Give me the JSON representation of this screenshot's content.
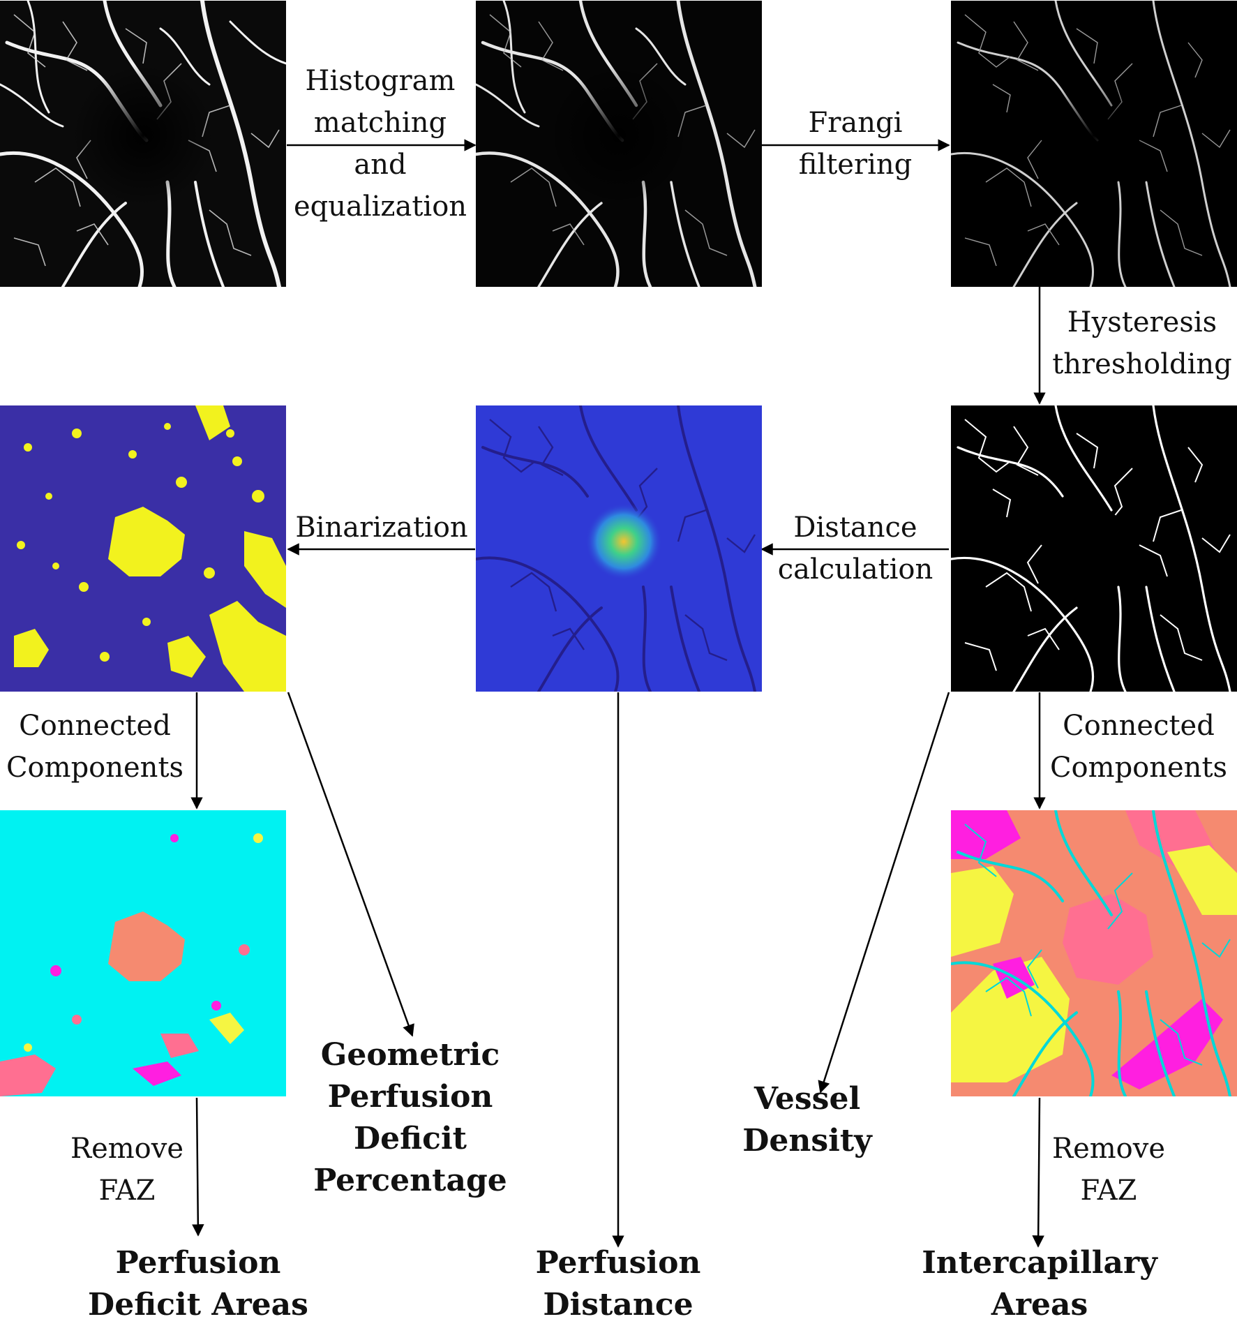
{
  "panels": {
    "oct_original": "OCTA image",
    "oct_equalized": "Equalized OCTA image",
    "frangi": "Frangi filtered image",
    "binary_vessels": "Binary vessel map",
    "distance_map": "Distance map",
    "perfusion_binary": "Binarized distance map",
    "perfusion_components": "Perfusion deficit components",
    "intercapillary_components": "Intercapillary components"
  },
  "steps": {
    "hist_match": [
      "Histogram",
      "matching",
      "and",
      "equalization"
    ],
    "frangi": [
      "Frangi",
      "filtering"
    ],
    "hysteresis": [
      "Hysteresis",
      "thresholding"
    ],
    "distance": [
      "Distance",
      "calculation"
    ],
    "binarization": [
      "Binarization"
    ],
    "cc_left": [
      "Connected",
      "Components"
    ],
    "cc_right": [
      "Connected",
      "Components"
    ],
    "remove_faz_left": [
      "Remove",
      "FAZ"
    ],
    "remove_faz_right": [
      "Remove",
      "FAZ"
    ]
  },
  "outputs": {
    "geometric": [
      "Geometric",
      "Perfusion",
      "Deficit",
      "Percentage"
    ],
    "vessel_density": [
      "Vessel",
      "Density"
    ],
    "perfusion_deficit_areas": [
      "Perfusion",
      "Deficit Areas"
    ],
    "perfusion_distance": [
      "Perfusion",
      "Distance"
    ],
    "intercapillary_areas": [
      "Intercapillary",
      "Areas"
    ]
  },
  "colors": {
    "vessel_white": "#ffffff",
    "background_black": "#000000",
    "binary_purple": "#3a2fa6",
    "binary_yellow": "#f2f21e",
    "distance_blue": "#2f3ad6",
    "distance_dark": "#241e8c",
    "distance_hot": "#f4c430",
    "cc_cyan": "#00f2f2",
    "cc_salmon": "#f58a70",
    "cc_magenta": "#ff1fe0",
    "cc_yellow": "#f5f542",
    "cc_pink": "#ff6f91"
  }
}
